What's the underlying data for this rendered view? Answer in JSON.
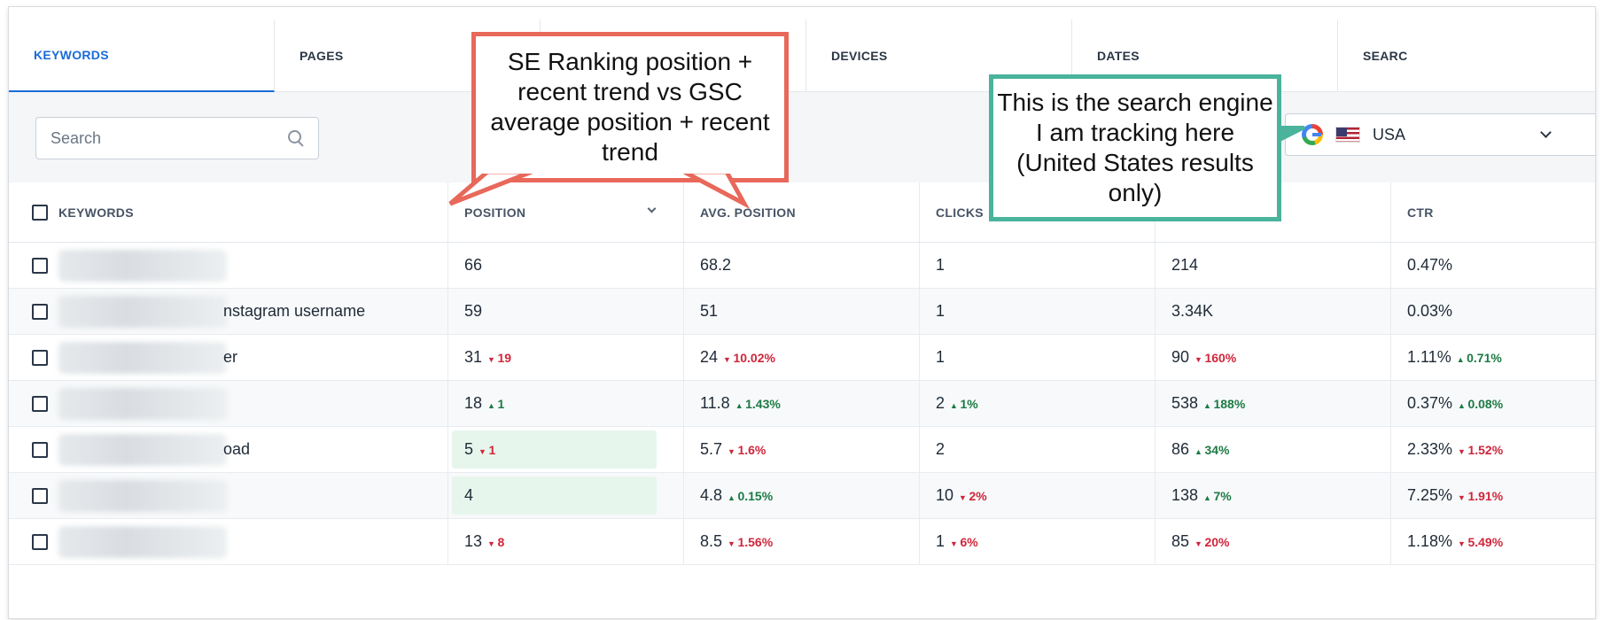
{
  "tabs": [
    {
      "label": "KEYWORDS"
    },
    {
      "label": "PAGES"
    },
    {
      "label": ""
    },
    {
      "label": "DEVICES"
    },
    {
      "label": "DATES"
    },
    {
      "label": "SEARC"
    }
  ],
  "search": {
    "placeholder": "Search"
  },
  "engine": {
    "label": "USA",
    "icon": "google-icon",
    "flag": "us-flag-icon"
  },
  "table": {
    "headers": {
      "keywords": "KEYWORDS",
      "position": "POSITION",
      "avg_position": "AVG. POSITION",
      "clicks": "CLICKS",
      "impressions": "",
      "ctr": "CTR"
    },
    "rows": [
      {
        "kw": "",
        "pos": "66",
        "pos_t": "",
        "avg": "68.2",
        "avg_t": "",
        "clk": "1",
        "clk_t": "",
        "imp": "214",
        "imp_t": "",
        "ctr": "0.47%",
        "ctr_t": ""
      },
      {
        "kw": "nstagram username",
        "pos": "59",
        "pos_t": "",
        "avg": "51",
        "avg_t": "",
        "clk": "1",
        "clk_t": "",
        "imp": "3.34K",
        "imp_t": "",
        "ctr": "0.03%",
        "ctr_t": ""
      },
      {
        "kw": "er",
        "pos": "31",
        "pos_t": "19",
        "avg": "24",
        "avg_t": "10.02%",
        "clk": "1",
        "clk_t": "",
        "imp": "90",
        "imp_t": "160%",
        "ctr": "1.11%",
        "ctr_t": "0.71%"
      },
      {
        "kw": "",
        "pos": "18",
        "pos_t": "1",
        "avg": "11.8",
        "avg_t": "1.43%",
        "clk": "2",
        "clk_t": "1%",
        "imp": "538",
        "imp_t": "188%",
        "ctr": "0.37%",
        "ctr_t": "0.08%"
      },
      {
        "kw": "oad",
        "pos": "5",
        "pos_t": "1",
        "avg": "5.7",
        "avg_t": "1.6%",
        "clk": "2",
        "clk_t": "",
        "imp": "86",
        "imp_t": "34%",
        "ctr": "2.33%",
        "ctr_t": "1.52%"
      },
      {
        "kw": "",
        "pos": "4",
        "pos_t": "",
        "avg": "4.8",
        "avg_t": "0.15%",
        "clk": "10",
        "clk_t": "2%",
        "imp": "138",
        "imp_t": "7%",
        "ctr": "7.25%",
        "ctr_t": "1.91%"
      },
      {
        "kw": "",
        "pos": "13",
        "pos_t": "8",
        "avg": "8.5",
        "avg_t": "1.56%",
        "clk": "1",
        "clk_t": "6%",
        "imp": "85",
        "imp_t": "20%",
        "ctr": "1.18%",
        "ctr_t": "5.49%"
      }
    ]
  },
  "annotations": {
    "red": "SE Ranking position + recent trend vs GSC average position + recent trend",
    "green": "This is the search engine I am tracking here (United States results only)"
  },
  "colors": {
    "accent": "#1a6bd8",
    "up": "#1c7a44",
    "down": "#d0263b",
    "callout_red": "#e8685a",
    "callout_green": "#4ab39c"
  }
}
